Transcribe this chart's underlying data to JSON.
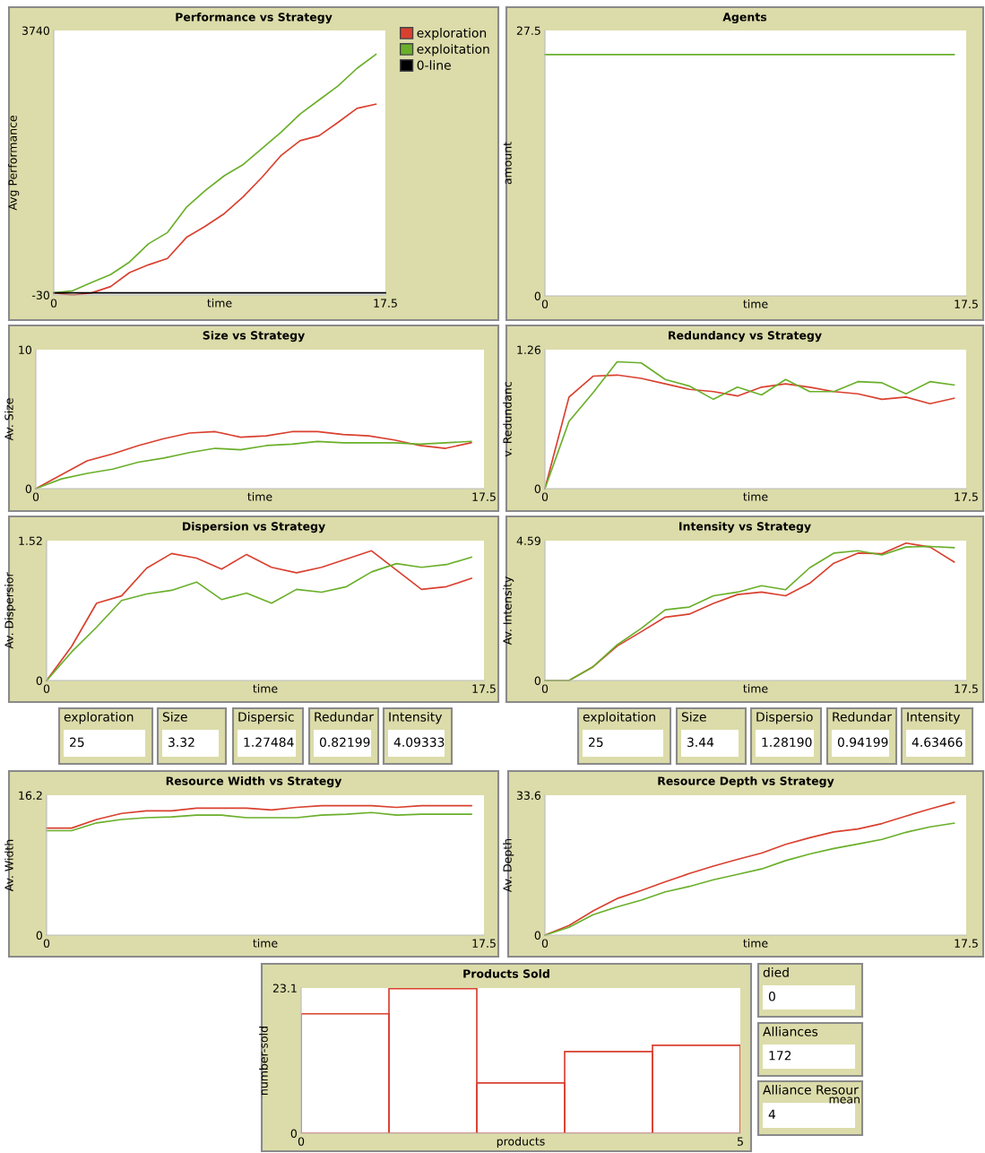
{
  "chart_data": [
    {
      "type": "line",
      "title": "Performance vs Strategy",
      "xlabel": "time",
      "ylabel": "Avg Performance",
      "x": [
        0,
        1,
        2,
        3,
        4,
        5,
        6,
        7,
        8,
        9,
        10,
        11,
        12,
        13,
        14,
        15,
        16,
        17
      ],
      "xlim": [
        0,
        17.5
      ],
      "xticks": [
        0,
        17.5
      ],
      "ylim": [
        -30,
        3740
      ],
      "yticks": [
        -30,
        3740
      ],
      "legend": "right",
      "series": [
        {
          "name": "exploration",
          "color": "#d9402f",
          "values": [
            0,
            -30,
            0,
            90,
            290,
            400,
            490,
            790,
            950,
            1130,
            1370,
            1650,
            1960,
            2170,
            2240,
            2430,
            2630,
            2690
          ]
        },
        {
          "name": "exploitation",
          "color": "#6aaf2a",
          "values": [
            0,
            30,
            150,
            260,
            440,
            700,
            860,
            1220,
            1460,
            1670,
            1830,
            2060,
            2290,
            2550,
            2750,
            2950,
            3200,
            3400
          ]
        },
        {
          "name": "0-line",
          "color": "#000000",
          "x": [
            0,
            17.5
          ],
          "values": [
            0,
            0
          ]
        }
      ]
    },
    {
      "type": "line",
      "title": "Agents",
      "xlabel": "time",
      "ylabel": "amount",
      "x": [
        0,
        1,
        2,
        3,
        4,
        5,
        6,
        7,
        8,
        9,
        10,
        11,
        12,
        13,
        14,
        15,
        16,
        17
      ],
      "xlim": [
        0,
        17.5
      ],
      "xticks": [
        0,
        17.5
      ],
      "ylim": [
        0,
        27.5
      ],
      "yticks": [
        0,
        27.5
      ],
      "series": [
        {
          "color": "#6aaf2a",
          "values": [
            25,
            25,
            25,
            25,
            25,
            25,
            25,
            25,
            25,
            25,
            25,
            25,
            25,
            25,
            25,
            25,
            25,
            25
          ]
        }
      ]
    },
    {
      "type": "line",
      "title": "Size vs Strategy",
      "xlabel": "time",
      "ylabel": "Av. Size",
      "x": [
        0,
        1,
        2,
        3,
        4,
        5,
        6,
        7,
        8,
        9,
        10,
        11,
        12,
        13,
        14,
        15,
        16,
        17
      ],
      "xlim": [
        0,
        17.5
      ],
      "xticks": [
        0,
        17.5
      ],
      "ylim": [
        0,
        10
      ],
      "yticks": [
        0,
        10
      ],
      "series": [
        {
          "color": "#d9402f",
          "values": [
            0,
            1.0,
            2.0,
            2.5,
            3.1,
            3.6,
            4.0,
            4.1,
            3.7,
            3.8,
            4.1,
            4.1,
            3.9,
            3.8,
            3.5,
            3.1,
            2.9,
            3.3
          ]
        },
        {
          "color": "#6aaf2a",
          "values": [
            0,
            0.7,
            1.1,
            1.4,
            1.9,
            2.2,
            2.6,
            2.9,
            2.8,
            3.1,
            3.2,
            3.4,
            3.3,
            3.3,
            3.3,
            3.2,
            3.3,
            3.4
          ]
        }
      ]
    },
    {
      "type": "line",
      "title": "Redundancy vs Strategy",
      "xlabel": "time",
      "ylabel": "v. Redundanc",
      "x": [
        0,
        1,
        2,
        3,
        4,
        5,
        6,
        7,
        8,
        9,
        10,
        11,
        12,
        13,
        14,
        15,
        16,
        17
      ],
      "xlim": [
        0,
        17.5
      ],
      "xticks": [
        0,
        17.5
      ],
      "ylim": [
        0,
        1.26
      ],
      "yticks": [
        0,
        1.26
      ],
      "series": [
        {
          "color": "#d9402f",
          "values": [
            0,
            0.83,
            1.02,
            1.03,
            1.0,
            0.95,
            0.9,
            0.88,
            0.84,
            0.92,
            0.95,
            0.92,
            0.88,
            0.86,
            0.81,
            0.83,
            0.77,
            0.82
          ]
        },
        {
          "color": "#6aaf2a",
          "values": [
            0,
            0.61,
            0.87,
            1.15,
            1.14,
            0.99,
            0.93,
            0.81,
            0.92,
            0.85,
            0.99,
            0.88,
            0.88,
            0.97,
            0.96,
            0.86,
            0.97,
            0.94
          ]
        }
      ]
    },
    {
      "type": "line",
      "title": "Dispersion vs Strategy",
      "xlabel": "time",
      "ylabel": "Av. Dispersior",
      "x": [
        0,
        1,
        2,
        3,
        4,
        5,
        6,
        7,
        8,
        9,
        10,
        11,
        12,
        13,
        14,
        15,
        16,
        17
      ],
      "xlim": [
        0,
        17.5
      ],
      "xticks": [
        0,
        17.5
      ],
      "ylim": [
        0,
        1.52
      ],
      "yticks": [
        0,
        1.52
      ],
      "series": [
        {
          "color": "#d9402f",
          "values": [
            0,
            0.37,
            0.84,
            0.92,
            1.22,
            1.38,
            1.33,
            1.21,
            1.37,
            1.23,
            1.17,
            1.23,
            1.32,
            1.41,
            1.2,
            0.99,
            1.02,
            1.11
          ]
        },
        {
          "color": "#6aaf2a",
          "values": [
            0,
            0.31,
            0.58,
            0.87,
            0.94,
            0.98,
            1.07,
            0.88,
            0.95,
            0.84,
            0.99,
            0.96,
            1.02,
            1.18,
            1.27,
            1.23,
            1.26,
            1.34
          ]
        }
      ]
    },
    {
      "type": "line",
      "title": "Intensity vs Strategy",
      "xlabel": "time",
      "ylabel": "Av. Intensity",
      "x": [
        0,
        1,
        2,
        3,
        4,
        5,
        6,
        7,
        8,
        9,
        10,
        11,
        12,
        13,
        14,
        15,
        16,
        17
      ],
      "xlim": [
        0,
        17.5
      ],
      "xticks": [
        0,
        17.5
      ],
      "ylim": [
        0,
        4.59
      ],
      "yticks": [
        0,
        4.59
      ],
      "series": [
        {
          "color": "#d9402f",
          "values": [
            0,
            0,
            0.45,
            1.13,
            1.6,
            2.08,
            2.18,
            2.53,
            2.82,
            2.9,
            2.78,
            3.19,
            3.85,
            4.18,
            4.16,
            4.51,
            4.38,
            3.89
          ]
        },
        {
          "color": "#6aaf2a",
          "values": [
            0,
            0,
            0.45,
            1.17,
            1.71,
            2.32,
            2.41,
            2.78,
            2.9,
            3.11,
            2.98,
            3.7,
            4.18,
            4.26,
            4.12,
            4.38,
            4.4,
            4.36
          ]
        }
      ]
    },
    {
      "type": "other",
      "title": "exploration",
      "annotations": [
        "25"
      ]
    },
    {
      "type": "other",
      "title": "Size",
      "annotations": [
        "3.32"
      ]
    },
    {
      "type": "other",
      "title": "Dispersic",
      "annotations": [
        "1.27484"
      ]
    },
    {
      "type": "other",
      "title": "Redundar",
      "annotations": [
        "0.82199"
      ]
    },
    {
      "type": "other",
      "title": "Intensity",
      "annotations": [
        "4.09333"
      ]
    },
    {
      "type": "other",
      "title": "exploitation",
      "annotations": [
        "25"
      ]
    },
    {
      "type": "other",
      "title": "Size",
      "annotations": [
        "3.44"
      ]
    },
    {
      "type": "other",
      "title": "Dispersio",
      "annotations": [
        "1.28190"
      ]
    },
    {
      "type": "other",
      "title": "Redundar",
      "annotations": [
        "0.94199"
      ]
    },
    {
      "type": "other",
      "title": "Intensity",
      "annotations": [
        "4.63466"
      ]
    },
    {
      "type": "line",
      "title": "Resource Width vs Strategy",
      "xlabel": "time",
      "ylabel": "Av. Width",
      "x": [
        0,
        1,
        2,
        3,
        4,
        5,
        6,
        7,
        8,
        9,
        10,
        11,
        12,
        13,
        14,
        15,
        16,
        17
      ],
      "xlim": [
        0,
        17.5
      ],
      "xticks": [
        0,
        17.5
      ],
      "ylim": [
        0,
        16.2
      ],
      "yticks": [
        0,
        16.2
      ],
      "series": [
        {
          "color": "#d9402f",
          "values": [
            12.4,
            12.4,
            13.4,
            14.1,
            14.4,
            14.4,
            14.7,
            14.7,
            14.7,
            14.5,
            14.8,
            15.0,
            15.0,
            15.0,
            14.8,
            15.0,
            15.0,
            15.0
          ]
        },
        {
          "color": "#6aaf2a",
          "values": [
            12.1,
            12.1,
            13.0,
            13.4,
            13.6,
            13.7,
            13.9,
            13.9,
            13.6,
            13.6,
            13.6,
            13.9,
            14.0,
            14.2,
            13.9,
            14.0,
            14.0,
            14.0
          ]
        }
      ]
    },
    {
      "type": "line",
      "title": "Resource Depth vs Strategy",
      "xlabel": "time",
      "ylabel": "Av. Depth",
      "x": [
        0,
        1,
        2,
        3,
        4,
        5,
        6,
        7,
        8,
        9,
        10,
        11,
        12,
        13,
        14,
        15,
        16,
        17
      ],
      "xlim": [
        0,
        17.5
      ],
      "xticks": [
        0,
        17.5
      ],
      "ylim": [
        0,
        33.6
      ],
      "yticks": [
        0,
        33.6
      ],
      "series": [
        {
          "color": "#d9402f",
          "values": [
            0,
            2.3,
            5.8,
            8.8,
            10.7,
            12.8,
            14.8,
            16.6,
            18.2,
            19.7,
            21.8,
            23.4,
            24.8,
            25.5,
            26.8,
            28.6,
            30.3,
            31.9
          ]
        },
        {
          "color": "#6aaf2a",
          "values": [
            0,
            1.9,
            4.9,
            6.8,
            8.4,
            10.4,
            11.7,
            13.3,
            14.6,
            15.9,
            17.9,
            19.5,
            20.8,
            21.9,
            23.0,
            24.7,
            26.0,
            26.9
          ]
        }
      ]
    },
    {
      "type": "histogram",
      "title": "Products Sold",
      "xlabel": "products",
      "ylabel": "number-sold",
      "bins": [
        0,
        1,
        2,
        3,
        4,
        5
      ],
      "values": [
        19,
        23,
        8,
        13,
        14
      ],
      "color": "#d9402f",
      "xlim": [
        0,
        5
      ],
      "xticks": [
        0,
        5
      ],
      "ylim": [
        0,
        23.1
      ],
      "yticks": [
        0,
        23.1
      ]
    },
    {
      "type": "other",
      "title": "died",
      "annotations": [
        "0"
      ]
    },
    {
      "type": "other",
      "title": "Alliances",
      "annotations": [
        "172"
      ]
    },
    {
      "type": "other",
      "title": "Alliance Resour",
      "annotations": [
        "mean",
        "4"
      ]
    }
  ]
}
